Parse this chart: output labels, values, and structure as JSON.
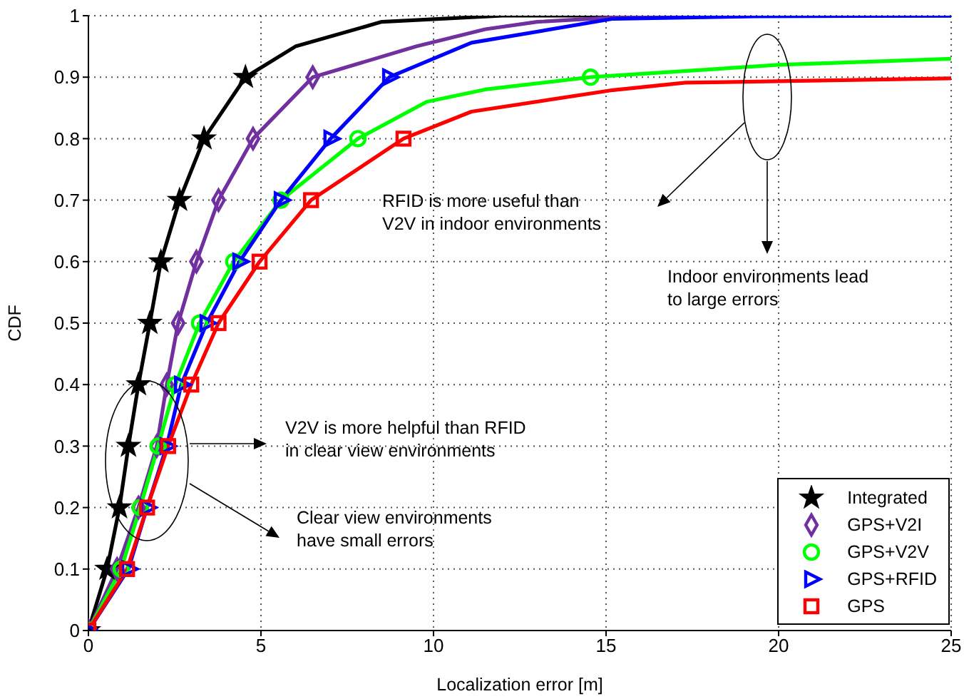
{
  "chart_data": {
    "type": "line",
    "xlabel": "Localization error [m]",
    "ylabel": "CDF",
    "xlim": [
      0,
      25
    ],
    "xticks": [
      0,
      5,
      10,
      15,
      20,
      25
    ],
    "ylim": [
      0,
      1
    ],
    "yticks": [
      0,
      0.1,
      0.2,
      0.3,
      0.4,
      0.5,
      0.6,
      0.7,
      0.8,
      0.9,
      1
    ],
    "grid": true,
    "legend": "bottom right",
    "line_style": "solid",
    "series": [
      {
        "name": "Integrated",
        "color": "#000000",
        "marker": "star",
        "x": [
          0,
          0.54,
          0.9,
          1.16,
          1.45,
          1.78,
          2.1,
          2.64,
          3.35,
          4.55,
          6.0,
          8.5,
          12,
          25
        ],
        "values": [
          0,
          0.1,
          0.2,
          0.3,
          0.4,
          0.5,
          0.6,
          0.7,
          0.8,
          0.9,
          0.95,
          0.99,
          1,
          1
        ]
      },
      {
        "name": "GPS+V2I",
        "color": "#7030a0",
        "marker": "diamond",
        "x": [
          0,
          0.83,
          1.45,
          1.98,
          2.27,
          2.6,
          3.13,
          3.77,
          4.77,
          6.5,
          9.5,
          11.5,
          13,
          15.2,
          20,
          25
        ],
        "values": [
          0,
          0.1,
          0.2,
          0.3,
          0.4,
          0.5,
          0.6,
          0.7,
          0.8,
          0.9,
          0.95,
          0.978,
          0.99,
          0.997,
          1,
          1
        ]
      },
      {
        "name": "GPS+V2V",
        "color": "#00ff00",
        "marker": "circle",
        "x": [
          0,
          0.95,
          1.5,
          2.02,
          2.52,
          3.22,
          4.21,
          5.58,
          7.81,
          9.8,
          11.5,
          14.55,
          20,
          25
        ],
        "values": [
          0,
          0.1,
          0.2,
          0.3,
          0.4,
          0.5,
          0.6,
          0.7,
          0.8,
          0.86,
          0.88,
          0.9,
          0.92,
          0.93
        ]
      },
      {
        "name": "GPS+RFID",
        "color": "#0000ff",
        "marker": "triangle",
        "x": [
          0,
          1.16,
          1.7,
          2.27,
          2.69,
          3.43,
          4.38,
          5.58,
          7.02,
          8.72,
          11.1,
          15.2,
          19.3,
          25
        ],
        "values": [
          0,
          0.1,
          0.2,
          0.3,
          0.4,
          0.5,
          0.6,
          0.7,
          0.8,
          0.9,
          0.956,
          0.995,
          0.999,
          1
        ]
      },
      {
        "name": "GPS",
        "color": "#ff0000",
        "marker": "square",
        "x": [
          0,
          1.12,
          1.7,
          2.31,
          2.98,
          3.77,
          4.96,
          6.45,
          9.13,
          11.1,
          15.2,
          17.3,
          25
        ],
        "values": [
          0,
          0.1,
          0.2,
          0.3,
          0.4,
          0.5,
          0.6,
          0.7,
          0.8,
          0.844,
          0.879,
          0.891,
          0.898
        ]
      }
    ],
    "annotations": [
      "RFID is more useful than\nV2V in indoor environments",
      "Indoor environments lead\nto large errors",
      "V2V is more helpful than RFID\nin clear view environments",
      "Clear view environments\nhave small errors"
    ]
  }
}
